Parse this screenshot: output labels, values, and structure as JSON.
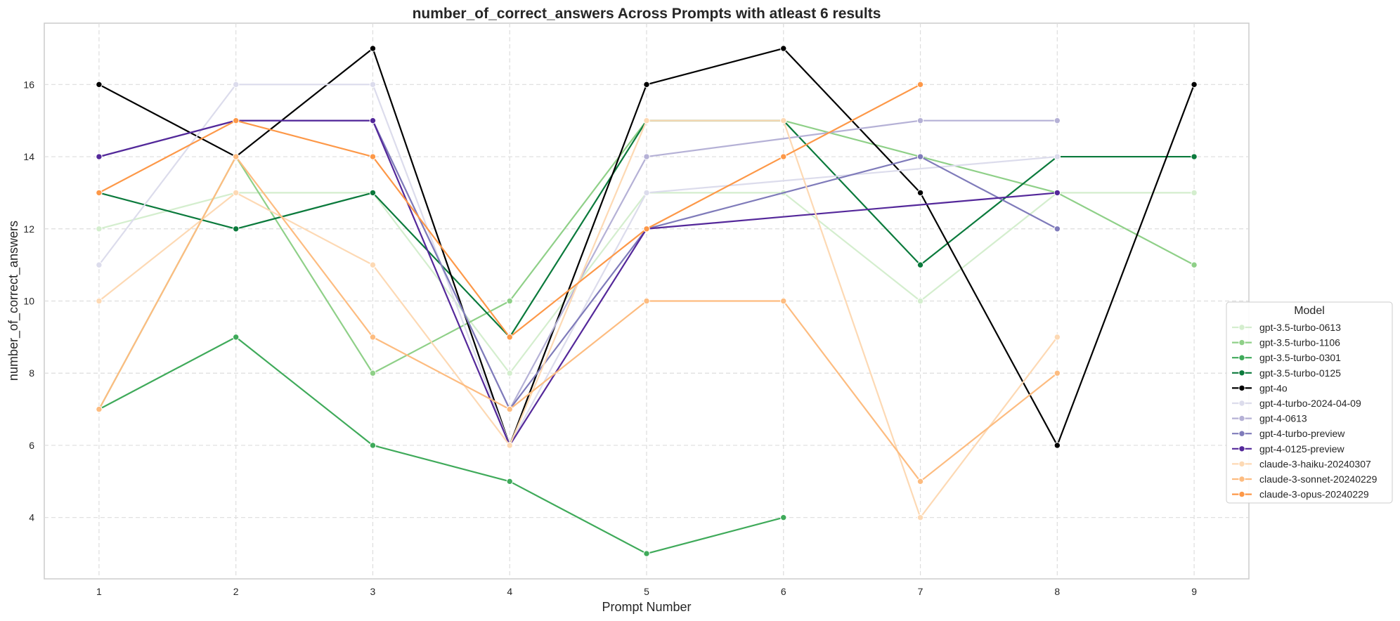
{
  "chart_data": {
    "type": "line",
    "title": "number_of_correct_answers Across Prompts with atleast 6 results",
    "xlabel": "Prompt Number",
    "ylabel": "number_of_correct_answers",
    "x": [
      1,
      2,
      3,
      4,
      5,
      6,
      7,
      8,
      9
    ],
    "x_ticks": [
      1,
      2,
      3,
      4,
      5,
      6,
      7,
      8,
      9
    ],
    "y_ticks": [
      4,
      6,
      8,
      10,
      12,
      14,
      16
    ],
    "xlim": [
      0.6,
      9.4
    ],
    "ylim": [
      2.3,
      17.7
    ],
    "grid": true,
    "legend": {
      "title": "Model",
      "placement": "center-right"
    },
    "series": [
      {
        "name": "gpt-3.5-turbo-0613",
        "color": "#d4eece",
        "values": [
          12,
          13,
          13,
          8,
          13,
          13,
          10,
          13,
          13
        ]
      },
      {
        "name": "gpt-3.5-turbo-1106",
        "color": "#8fd088",
        "values": [
          7,
          14,
          8,
          10,
          15,
          15,
          14,
          13,
          11
        ]
      },
      {
        "name": "gpt-3.5-turbo-0301",
        "color": "#3faa5a",
        "values": [
          7,
          9,
          6,
          5,
          3,
          4,
          null,
          null,
          null
        ]
      },
      {
        "name": "gpt-3.5-turbo-0125",
        "color": "#0b7a3c",
        "values": [
          13,
          12,
          13,
          9,
          15,
          15,
          11,
          14,
          14
        ]
      },
      {
        "name": "gpt-4o",
        "color": "#000000",
        "values": [
          16,
          14,
          17,
          6,
          16,
          17,
          13,
          6,
          16
        ]
      },
      {
        "name": "gpt-4-turbo-2024-04-09",
        "color": "#dcdcec",
        "values": [
          11,
          16,
          16,
          6,
          13,
          null,
          null,
          14,
          null
        ]
      },
      {
        "name": "gpt-4-0613",
        "color": "#b5b1d6",
        "values": [
          14,
          15,
          15,
          7,
          14,
          null,
          15,
          15,
          null
        ]
      },
      {
        "name": "gpt-4-turbo-preview",
        "color": "#7f7bba",
        "values": [
          14,
          15,
          15,
          7,
          12,
          null,
          14,
          12,
          null
        ]
      },
      {
        "name": "gpt-4-0125-preview",
        "color": "#54289a",
        "values": [
          14,
          15,
          15,
          6,
          12,
          null,
          null,
          13,
          null
        ]
      },
      {
        "name": "claude-3-haiku-20240307",
        "color": "#fdd9b4",
        "values": [
          10,
          13,
          11,
          6,
          15,
          15,
          4,
          9,
          null
        ]
      },
      {
        "name": "claude-3-sonnet-20240229",
        "color": "#fdbc80",
        "values": [
          7,
          14,
          9,
          7,
          10,
          10,
          5,
          8,
          null
        ]
      },
      {
        "name": "claude-3-opus-20240229",
        "color": "#fd9848",
        "values": [
          13,
          15,
          14,
          9,
          12,
          14,
          16,
          null,
          null
        ]
      }
    ]
  }
}
